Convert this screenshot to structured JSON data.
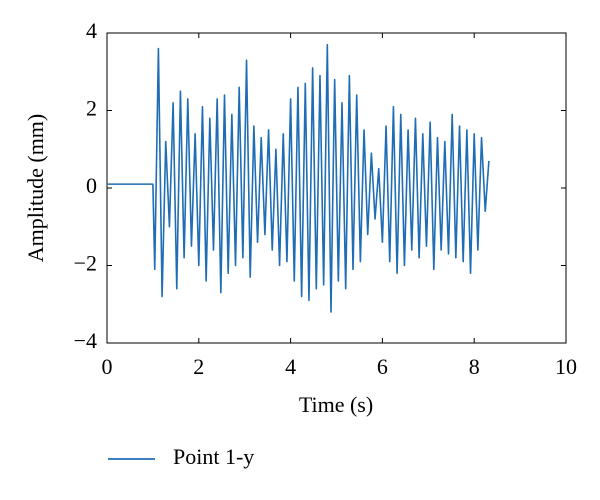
{
  "chart_data": {
    "type": "line",
    "xlabel": "Time (s)",
    "ylabel": "Amplitude (mm)",
    "x": [
      0,
      1.0,
      1.04,
      1.12,
      1.2,
      1.28,
      1.36,
      1.44,
      1.52,
      1.6,
      1.68,
      1.76,
      1.84,
      1.92,
      2.0,
      2.08,
      2.16,
      2.24,
      2.32,
      2.4,
      2.48,
      2.56,
      2.64,
      2.72,
      2.8,
      2.88,
      2.96,
      3.04,
      3.12,
      3.2,
      3.28,
      3.36,
      3.44,
      3.52,
      3.6,
      3.68,
      3.76,
      3.84,
      3.92,
      4.0,
      4.08,
      4.16,
      4.24,
      4.32,
      4.4,
      4.48,
      4.56,
      4.64,
      4.72,
      4.8,
      4.88,
      4.96,
      5.04,
      5.12,
      5.2,
      5.28,
      5.36,
      5.44,
      5.52,
      5.6,
      5.68,
      5.76,
      5.84,
      5.92,
      6.0,
      6.08,
      6.16,
      6.24,
      6.32,
      6.4,
      6.48,
      6.56,
      6.64,
      6.72,
      6.8,
      6.88,
      6.96,
      7.04,
      7.12,
      7.2,
      7.28,
      7.36,
      7.44,
      7.52,
      7.6,
      7.68,
      7.76,
      7.84,
      7.92,
      8.0,
      8.08,
      8.16,
      8.24,
      8.32
    ],
    "series": [
      {
        "name": "Point 1-y",
        "color": "#1f6db4",
        "values": [
          0.1,
          0.1,
          -2.1,
          3.6,
          -2.8,
          1.2,
          -1.0,
          2.2,
          -2.6,
          2.5,
          -1.8,
          2.3,
          -1.5,
          1.4,
          -2.0,
          2.1,
          -2.4,
          1.8,
          -1.6,
          2.3,
          -2.7,
          2.4,
          -2.2,
          1.9,
          -2.0,
          2.6,
          -1.8,
          3.3,
          -2.3,
          1.6,
          -1.4,
          1.3,
          -1.2,
          1.5,
          -1.6,
          1.0,
          -2.0,
          1.4,
          -1.9,
          2.3,
          -2.4,
          2.6,
          -2.8,
          2.7,
          -2.9,
          3.1,
          -2.6,
          2.9,
          -2.5,
          3.7,
          -3.2,
          2.8,
          -2.4,
          2.2,
          -2.6,
          2.9,
          -2.1,
          2.4,
          -1.9,
          1.5,
          -1.2,
          0.9,
          -0.8,
          0.5,
          -1.4,
          1.6,
          -1.9,
          2.1,
          -2.2,
          1.9,
          -2.0,
          1.5,
          -1.6,
          1.8,
          -1.8,
          1.4,
          -1.5,
          1.7,
          -2.1,
          1.3,
          -1.6,
          1.2,
          -1.7,
          1.9,
          -1.8,
          1.6,
          -1.9,
          1.5,
          -2.2,
          1.4,
          -1.6,
          1.3,
          -0.6,
          0.7
        ]
      }
    ],
    "xlim": [
      0,
      10
    ],
    "xticks": [
      0,
      2,
      4,
      6,
      8,
      10
    ],
    "ylim": [
      -4,
      4
    ],
    "yticks": [
      {
        "value": -4,
        "label": "−4"
      },
      {
        "value": -2,
        "label": "−2"
      },
      0,
      2,
      4
    ],
    "grid": false,
    "legend": "bottom-left"
  }
}
